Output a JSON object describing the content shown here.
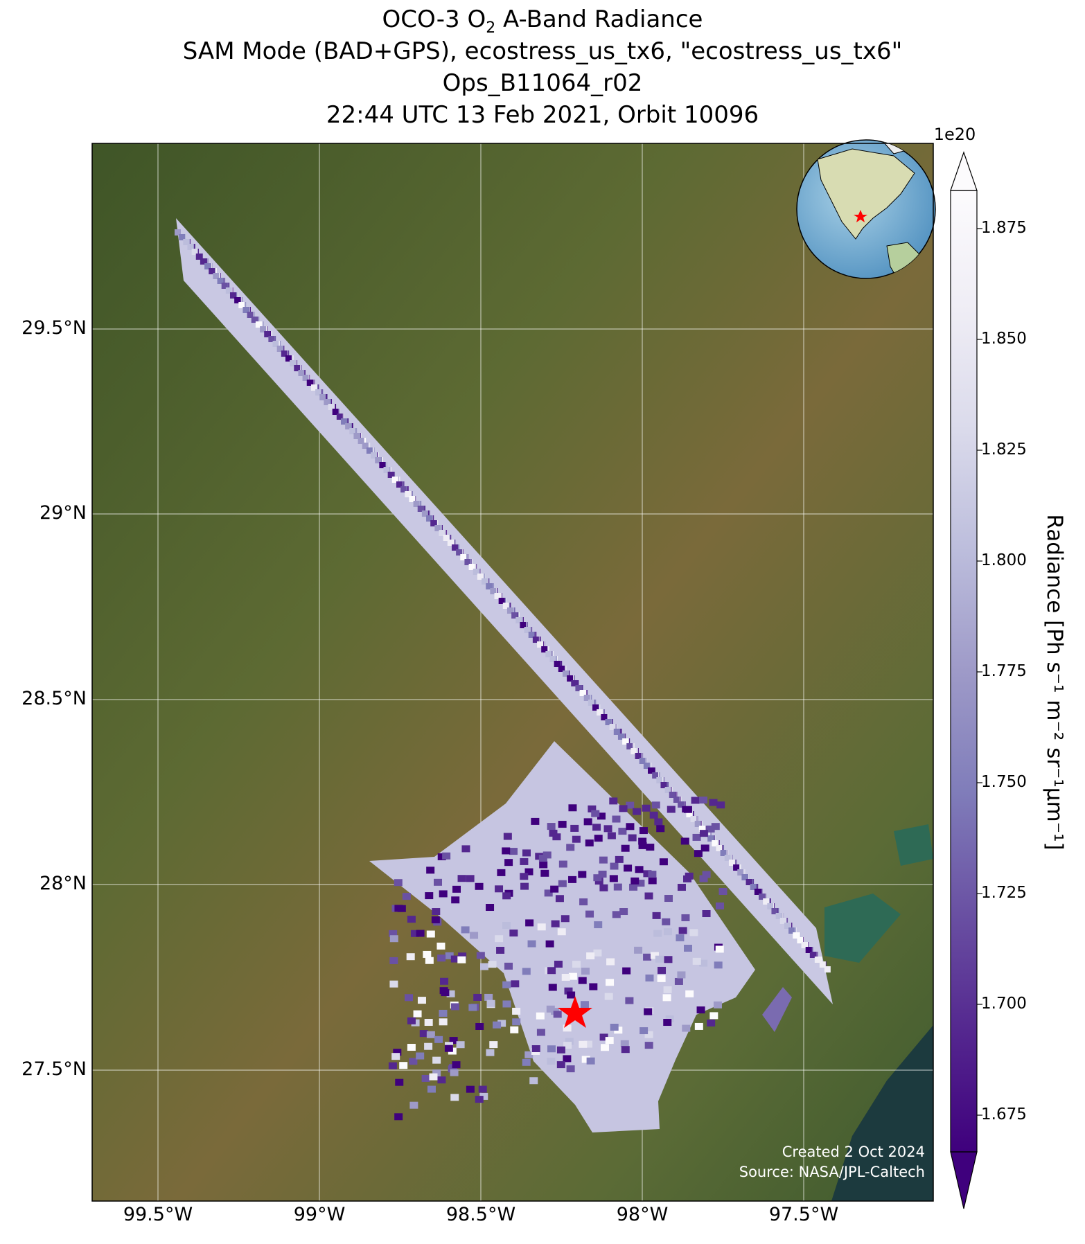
{
  "title": {
    "line1_prefix": "OCO-3 O",
    "line1_sub": "2",
    "line1_suffix": " A-Band Radiance",
    "line2": "SAM Mode (BAD+GPS), ecostress_us_tx6, \"ecostress_us_tx6\"",
    "line3": "Ops_B11064_r02",
    "line4": "22:44 UTC 13 Feb 2021, Orbit 10096"
  },
  "axes": {
    "lon_ticks": [
      "99.5°W",
      "99°W",
      "98.5°W",
      "98°W",
      "97.5°W"
    ],
    "lat_ticks": [
      "29.5°N",
      "29°N",
      "28.5°N",
      "28°N",
      "27.5°N"
    ]
  },
  "colorbar": {
    "label": "Radiance [Ph s⁻¹ m⁻² sr⁻¹μm⁻¹]",
    "exponent": "1e20",
    "ticks": [
      "1.875",
      "1.850",
      "1.825",
      "1.800",
      "1.775",
      "1.750",
      "1.725",
      "1.700",
      "1.675"
    ],
    "colormap": [
      "#3f007d",
      "#54278f",
      "#6a51a3",
      "#807dba",
      "#9e9ac8",
      "#bcbddc",
      "#dadaeb",
      "#efedf5",
      "#fcfbfd"
    ]
  },
  "credits": {
    "line1": "Created 2 Oct 2024",
    "line2": "Source: NASA/JPL-Caltech"
  },
  "colors": {
    "land_green": "#4a5e2c",
    "land_brown": "#7a6a3a",
    "ocean": "#1f3a3a",
    "target_star": "#ff0000"
  },
  "target_marker": "star-icon",
  "inset_globe": "globe-icon"
}
